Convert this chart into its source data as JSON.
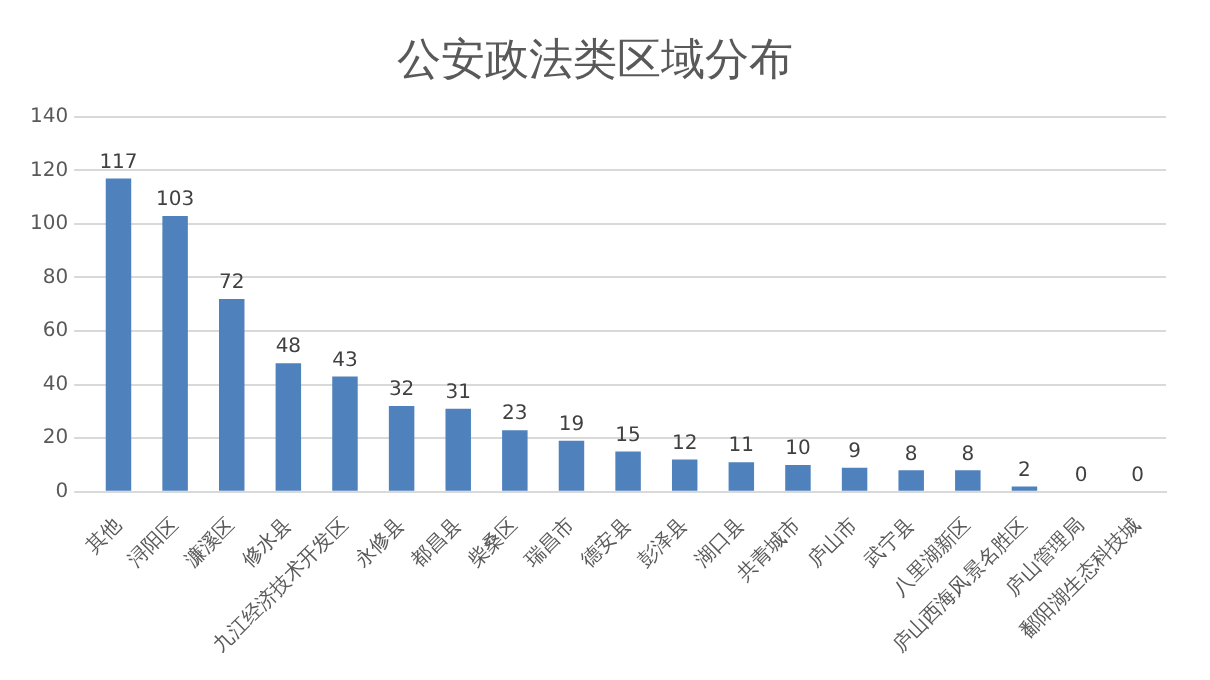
{
  "chart_data": {
    "type": "bar",
    "title": "公安政法类区域分布",
    "categories": [
      "其他",
      "浔阳区",
      "濂溪区",
      "修水县",
      "九江经济技术开发区",
      "永修县",
      "都昌县",
      "柴桑区",
      "瑞昌市",
      "德安县",
      "彭泽县",
      "湖口县",
      "共青城市",
      "庐山市",
      "武宁县",
      "八里湖新区",
      "庐山西海风景名胜区",
      "庐山管理局",
      "鄱阳湖生态科技城"
    ],
    "values": [
      117,
      103,
      72,
      48,
      43,
      32,
      31,
      23,
      19,
      15,
      12,
      11,
      10,
      9,
      8,
      8,
      2,
      0,
      0
    ],
    "color": "#4f81bd",
    "ylim": [
      0,
      140
    ],
    "yticks": [
      0,
      20,
      40,
      60,
      80,
      100,
      120,
      140
    ],
    "grid": "y",
    "data_labels": true,
    "legend": false
  }
}
